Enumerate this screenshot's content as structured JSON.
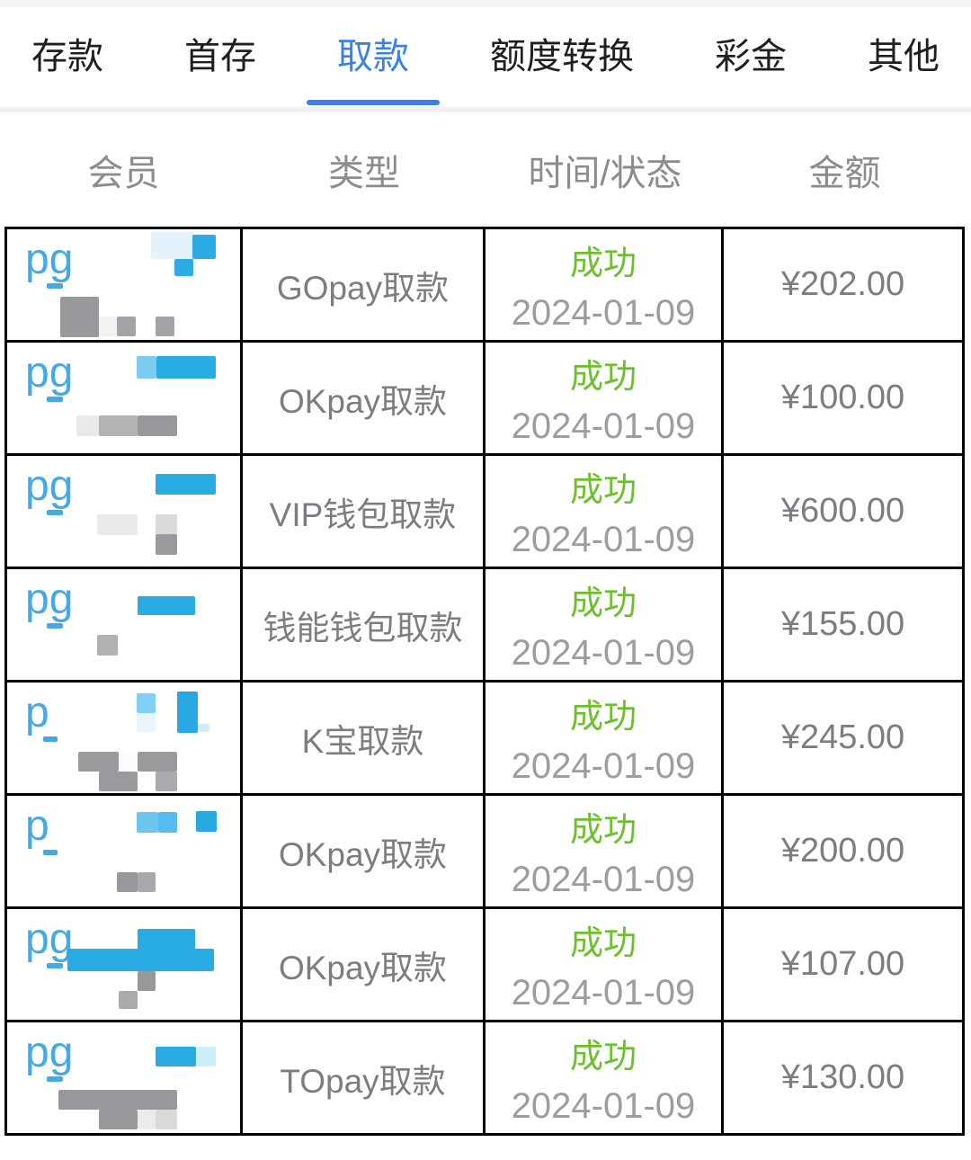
{
  "colors": {
    "accent_blue": "#3d7fe8",
    "member_link_blue": "#45a9e3",
    "mosaic_blue": "#29abe3",
    "success_green": "#6dbf2d",
    "body_text_gray": "#7b7d80",
    "date_gray": "#9b9da1",
    "header_gray": "#8c8c8c",
    "table_border": "#000000"
  },
  "tabs": {
    "items": [
      {
        "name": "tab-deposit",
        "label": "存款",
        "active": false
      },
      {
        "name": "tab-first-deposit",
        "label": "首存",
        "active": false
      },
      {
        "name": "tab-withdrawal",
        "label": "取款",
        "active": true
      },
      {
        "name": "tab-quota-convert",
        "label": "额度转换",
        "active": false
      },
      {
        "name": "tab-bonus",
        "label": "彩金",
        "active": false
      },
      {
        "name": "tab-other",
        "label": "其他",
        "active": false
      }
    ]
  },
  "table": {
    "headers": [
      "会员",
      "类型",
      "时间/状态",
      "金额"
    ],
    "rows": [
      {
        "member_prefix": "pg",
        "type": "GOpay取款",
        "status": "成功",
        "date": "2024-01-09",
        "amount": "¥202.00",
        "mosaic": [
          [
            44,
            60,
            18,
            6,
            "#45a9e3"
          ],
          [
            160,
            3,
            48,
            30,
            "#e3f2fb"
          ],
          [
            206,
            6,
            26,
            27,
            "#2cabe4"
          ],
          [
            186,
            33,
            21,
            19,
            "#2cabe4"
          ],
          [
            59,
            75,
            43,
            45,
            "#97999d"
          ],
          [
            102,
            97,
            20,
            22,
            "#f2f2f2"
          ],
          [
            122,
            97,
            21,
            22,
            "#a2a4a8"
          ],
          [
            165,
            97,
            21,
            22,
            "#a2a4a8"
          ]
        ]
      },
      {
        "member_prefix": "pg",
        "type": "OKpay取款",
        "status": "成功",
        "date": "2024-01-09",
        "amount": "¥100.00",
        "mosaic": [
          [
            44,
            60,
            18,
            6,
            "#45a9e3"
          ],
          [
            144,
            15,
            22,
            25,
            "#7ecbf1"
          ],
          [
            166,
            15,
            66,
            25,
            "#29abe3"
          ],
          [
            77,
            81,
            25,
            23,
            "#e9e9e9"
          ],
          [
            102,
            81,
            43,
            23,
            "#b3b3b6"
          ],
          [
            145,
            81,
            44,
            23,
            "#98989c"
          ]
        ]
      },
      {
        "member_prefix": "pg",
        "type": "VIP钱包取款",
        "status": "成功",
        "date": "2024-01-09",
        "amount": "¥600.00",
        "mosaic": [
          [
            44,
            60,
            18,
            6,
            "#45a9e3"
          ],
          [
            165,
            20,
            67,
            23,
            "#29abe3"
          ],
          [
            100,
            65,
            45,
            23,
            "#eaeaea"
          ],
          [
            165,
            65,
            24,
            22,
            "#dadada"
          ],
          [
            165,
            87,
            24,
            23,
            "#9a9a9e"
          ]
        ]
      },
      {
        "member_prefix": "pg",
        "type": "钱能钱包取款",
        "status": "成功",
        "date": "2024-01-09",
        "amount": "¥155.00",
        "mosaic": [
          [
            44,
            60,
            18,
            6,
            "#45a9e3"
          ],
          [
            145,
            30,
            64,
            21,
            "#29abe3"
          ],
          [
            100,
            73,
            23,
            23,
            "#b1b1b4"
          ]
        ]
      },
      {
        "member_prefix": "p",
        "type": "K宝取款",
        "status": "成功",
        "date": "2024-01-09",
        "amount": "¥245.00",
        "mosaic": [
          [
            40,
            60,
            16,
            6,
            "#45a9e3"
          ],
          [
            144,
            12,
            21,
            22,
            "#7fd0f4"
          ],
          [
            144,
            34,
            21,
            21,
            "#e8f5fc"
          ],
          [
            189,
            10,
            23,
            46,
            "#29a9e1"
          ],
          [
            212,
            46,
            13,
            9,
            "#cfeaf8"
          ],
          [
            79,
            77,
            45,
            22,
            "#9a9a9e"
          ],
          [
            124,
            77,
            21,
            22,
            "#fbfbfb"
          ],
          [
            145,
            77,
            44,
            22,
            "#9a9a9e"
          ],
          [
            102,
            99,
            43,
            22,
            "#9a9a9e"
          ],
          [
            165,
            99,
            24,
            22,
            "#ababaf"
          ]
        ]
      },
      {
        "member_prefix": "p",
        "type": "OKpay取款",
        "status": "成功",
        "date": "2024-01-09",
        "amount": "¥200.00",
        "mosaic": [
          [
            40,
            60,
            16,
            6,
            "#45a9e3"
          ],
          [
            144,
            18,
            24,
            23,
            "#6cc6f0"
          ],
          [
            168,
            18,
            21,
            23,
            "#55bdee"
          ],
          [
            210,
            17,
            23,
            23,
            "#29a8e0"
          ],
          [
            122,
            85,
            23,
            22,
            "#98989c"
          ],
          [
            145,
            85,
            20,
            22,
            "#a9a9ad"
          ]
        ]
      },
      {
        "member_prefix": "pg",
        "type": "OKpay取款",
        "status": "成功",
        "date": "2024-01-09",
        "amount": "¥107.00",
        "mosaic": [
          [
            44,
            60,
            18,
            6,
            "#45a9e3"
          ],
          [
            145,
            22,
            64,
            24,
            "#29abe3"
          ],
          [
            67,
            44,
            163,
            25,
            "#29abe3"
          ],
          [
            145,
            69,
            20,
            22,
            "#98989c"
          ],
          [
            124,
            91,
            21,
            20,
            "#ababaf"
          ]
        ]
      },
      {
        "member_prefix": "pg",
        "type": "TOpay取款",
        "status": "成功",
        "date": "2024-01-09",
        "amount": "¥130.00",
        "mosaic": [
          [
            44,
            60,
            18,
            6,
            "#45a9e3"
          ],
          [
            165,
            27,
            45,
            22,
            "#29abe3"
          ],
          [
            210,
            27,
            22,
            22,
            "#cdeefb"
          ],
          [
            57,
            75,
            132,
            22,
            "#98989c"
          ],
          [
            102,
            97,
            43,
            22,
            "#98989c"
          ],
          [
            145,
            97,
            20,
            22,
            "#ebebeb"
          ],
          [
            165,
            97,
            24,
            22,
            "#d9d9d9"
          ]
        ]
      }
    ]
  }
}
